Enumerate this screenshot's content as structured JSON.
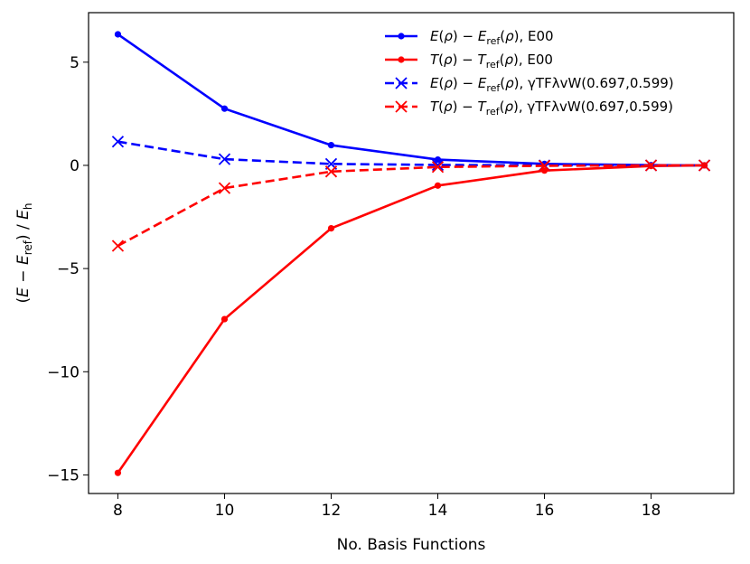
{
  "chart_data": {
    "type": "line",
    "xlabel": "No. Basis Functions",
    "ylabel": "(E − E_ref) / E_h",
    "xlim": [
      7.45,
      19.55
    ],
    "ylim": [
      -15.9,
      7.4
    ],
    "xticks": [
      8,
      10,
      12,
      14,
      16,
      18
    ],
    "yticks": [
      5,
      0,
      -5,
      -10,
      -15
    ],
    "xtick_labels": [
      "8",
      "10",
      "12",
      "14",
      "16",
      "18"
    ],
    "ytick_labels": [
      "5",
      "0",
      "−5",
      "−10",
      "−15"
    ],
    "grid": false,
    "legend_position": "top-right",
    "x": [
      8,
      10,
      12,
      14,
      16,
      18,
      19
    ],
    "series": [
      {
        "name": "E(ρ) − E_ref(ρ), E00",
        "color": "#0000ff",
        "linestyle": "solid",
        "marker": "dot",
        "values": [
          6.35,
          2.75,
          0.98,
          0.28,
          0.07,
          0.01,
          0.0
        ]
      },
      {
        "name": "T(ρ) − T_ref(ρ), E00",
        "color": "#ff0000",
        "linestyle": "solid",
        "marker": "dot",
        "values": [
          -14.9,
          -7.45,
          -3.05,
          -0.98,
          -0.25,
          -0.03,
          0.0
        ]
      },
      {
        "name": "E(ρ) − E_ref(ρ), γTFλvW(0.697,0.599)",
        "color": "#0000ff",
        "linestyle": "dashed",
        "marker": "x",
        "values": [
          1.15,
          0.3,
          0.07,
          0.02,
          0.0,
          0.0,
          0.0
        ]
      },
      {
        "name": "T(ρ) − T_ref(ρ), γTFλvW(0.697,0.599)",
        "color": "#ff0000",
        "linestyle": "dashed",
        "marker": "x",
        "values": [
          -3.9,
          -1.1,
          -0.3,
          -0.08,
          -0.02,
          0.0,
          0.0
        ]
      }
    ],
    "legend": [
      {
        "func": "E",
        "sub": "ref",
        "suffix": ", E00"
      },
      {
        "func": "T",
        "sub": "ref",
        "suffix": ", E00"
      },
      {
        "func": "E",
        "sub": "ref",
        "suffix": ", γTFλvW(0.697,0.599)"
      },
      {
        "func": "T",
        "sub": "ref",
        "suffix": ", γTFλvW(0.697,0.599)"
      }
    ]
  }
}
